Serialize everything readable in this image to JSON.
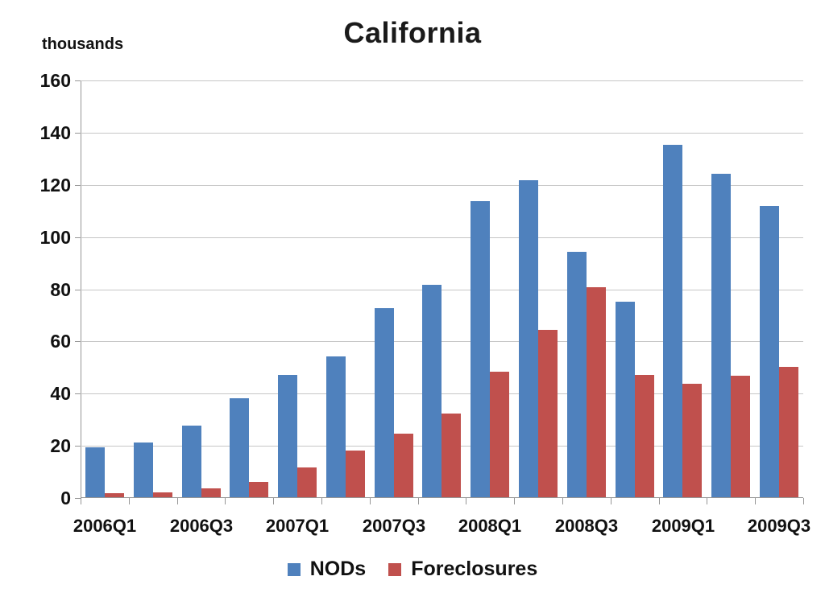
{
  "chart_data": {
    "type": "bar",
    "title": "California",
    "unit_label": "thousands",
    "xlabel": "",
    "ylabel": "thousands",
    "ylim": [
      0,
      160
    ],
    "ytick_step": 20,
    "grid": true,
    "legend_position": "bottom",
    "categories": [
      "2006Q1",
      "2006Q2",
      "2006Q3",
      "2006Q4",
      "2007Q1",
      "2007Q2",
      "2007Q3",
      "2007Q4",
      "2008Q1",
      "2008Q2",
      "2008Q3",
      "2008Q4",
      "2009Q1",
      "2009Q2",
      "2009Q3"
    ],
    "x_tick_labels": [
      "2006Q1",
      "2006Q3",
      "2007Q1",
      "2007Q3",
      "2008Q1",
      "2008Q3",
      "2009Q1",
      "2009Q3"
    ],
    "series": [
      {
        "name": "NODs",
        "color": "#4F81BD",
        "values": [
          19,
          21,
          27.5,
          38,
          47,
          54,
          72.5,
          81.5,
          113.5,
          121.5,
          94,
          75,
          135,
          124,
          111.5
        ]
      },
      {
        "name": "Foreclosures",
        "color": "#C0504D",
        "values": [
          1.5,
          2,
          3.5,
          6,
          11.5,
          18,
          24.5,
          32,
          48,
          64,
          80.5,
          47,
          43.5,
          46.5,
          50
        ]
      }
    ],
    "colors": {
      "grid": "#c6c6c6",
      "axis": "#969696",
      "text": "#111111"
    }
  }
}
